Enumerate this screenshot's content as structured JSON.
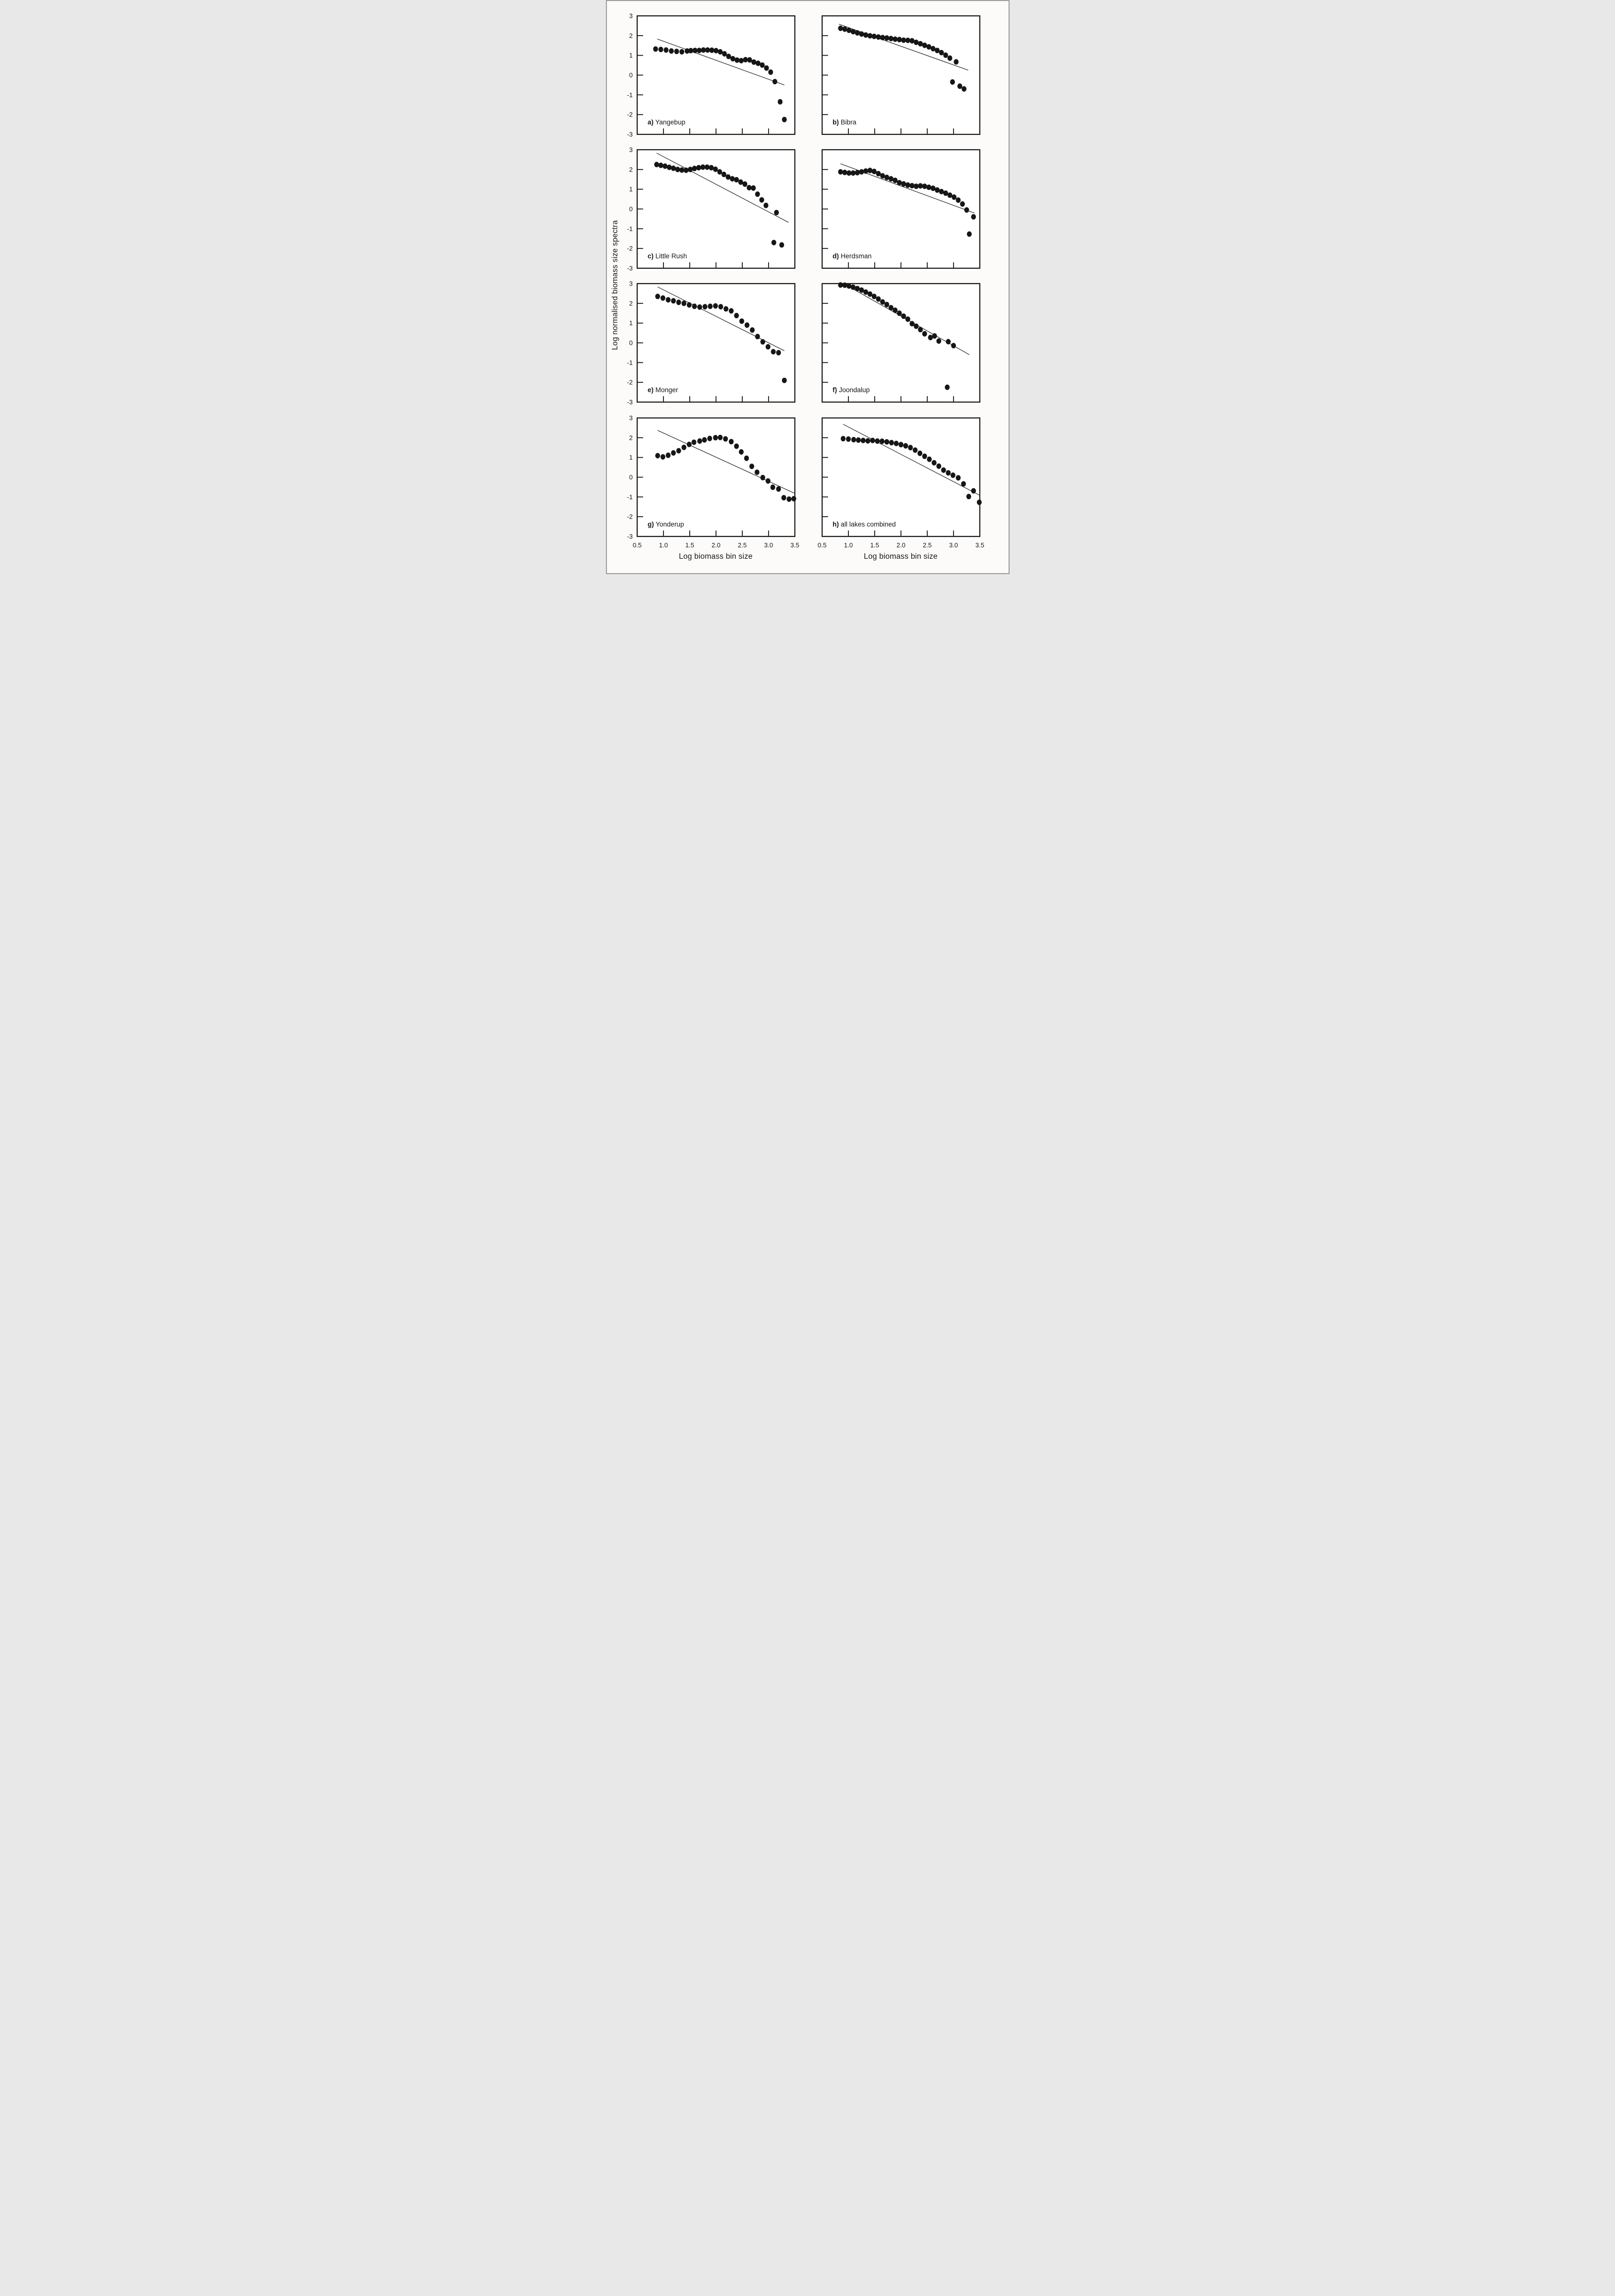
{
  "page": {
    "background": "#fcfbf9",
    "border_color": "#9b9b9b"
  },
  "figure": {
    "ylabel": "Log normalised biomass size spectra",
    "xlabel_left": "Log biomass bin size",
    "xlabel_right": "Log biomass bin size",
    "marker_color": "#161616",
    "line_color": "#262626",
    "axis_color": "#1a1a1a",
    "grid": false,
    "legend": null,
    "xlim": [
      0.5,
      3.5
    ],
    "ylim": [
      -3,
      3
    ],
    "xticks": [
      0.5,
      1.0,
      1.5,
      2.0,
      2.5,
      3.0,
      3.5
    ],
    "xtick_labels": [
      "0.5",
      "1.0",
      "1.5",
      "2.0",
      "2.5",
      "3.0",
      "3.5"
    ],
    "yticks": [
      3,
      2,
      1,
      0,
      -1,
      -2,
      -3
    ],
    "ytick_labels": [
      "3",
      "2",
      "1",
      "0",
      "-1",
      "-2",
      "-3"
    ]
  },
  "chart_data": [
    {
      "panel": "a",
      "label_prefix": "a)",
      "title": "Yangebup",
      "type": "scatter",
      "show_y_tick_labels": true,
      "show_x_tick_labels": false,
      "points": [
        [
          0.85,
          1.32
        ],
        [
          0.95,
          1.3
        ],
        [
          1.05,
          1.27
        ],
        [
          1.15,
          1.22
        ],
        [
          1.25,
          1.2
        ],
        [
          1.35,
          1.18
        ],
        [
          1.45,
          1.22
        ],
        [
          1.52,
          1.24
        ],
        [
          1.6,
          1.25
        ],
        [
          1.68,
          1.25
        ],
        [
          1.76,
          1.27
        ],
        [
          1.84,
          1.27
        ],
        [
          1.92,
          1.26
        ],
        [
          2.0,
          1.24
        ],
        [
          2.08,
          1.18
        ],
        [
          2.16,
          1.08
        ],
        [
          2.24,
          0.95
        ],
        [
          2.32,
          0.83
        ],
        [
          2.4,
          0.76
        ],
        [
          2.48,
          0.73
        ],
        [
          2.56,
          0.78
        ],
        [
          2.64,
          0.77
        ],
        [
          2.72,
          0.66
        ],
        [
          2.8,
          0.6
        ],
        [
          2.88,
          0.51
        ],
        [
          2.96,
          0.36
        ],
        [
          3.04,
          0.15
        ],
        [
          3.12,
          -0.33
        ],
        [
          3.22,
          -1.35
        ],
        [
          3.3,
          -2.25
        ]
      ],
      "trend_line": [
        [
          0.88,
          1.83
        ],
        [
          3.3,
          -0.5
        ]
      ]
    },
    {
      "panel": "b",
      "label_prefix": "b)",
      "title": "Bibra",
      "type": "scatter",
      "show_y_tick_labels": false,
      "show_x_tick_labels": false,
      "points": [
        [
          0.85,
          2.37
        ],
        [
          0.93,
          2.33
        ],
        [
          1.01,
          2.27
        ],
        [
          1.09,
          2.2
        ],
        [
          1.17,
          2.14
        ],
        [
          1.25,
          2.08
        ],
        [
          1.33,
          2.03
        ],
        [
          1.41,
          1.99
        ],
        [
          1.49,
          1.96
        ],
        [
          1.57,
          1.93
        ],
        [
          1.65,
          1.9
        ],
        [
          1.73,
          1.88
        ],
        [
          1.81,
          1.85
        ],
        [
          1.89,
          1.82
        ],
        [
          1.97,
          1.8
        ],
        [
          2.05,
          1.77
        ],
        [
          2.13,
          1.76
        ],
        [
          2.21,
          1.74
        ],
        [
          2.29,
          1.66
        ],
        [
          2.37,
          1.59
        ],
        [
          2.45,
          1.51
        ],
        [
          2.53,
          1.43
        ],
        [
          2.61,
          1.34
        ],
        [
          2.69,
          1.25
        ],
        [
          2.77,
          1.14
        ],
        [
          2.85,
          1.01
        ],
        [
          2.93,
          0.86
        ],
        [
          3.05,
          0.67
        ],
        [
          2.98,
          -0.35
        ],
        [
          3.12,
          -0.56
        ],
        [
          3.2,
          -0.7
        ]
      ],
      "trend_line": [
        [
          0.82,
          2.58
        ],
        [
          3.28,
          0.25
        ]
      ]
    },
    {
      "panel": "c",
      "label_prefix": "c)",
      "title": "Little Rush",
      "type": "scatter",
      "show_y_tick_labels": true,
      "show_x_tick_labels": false,
      "points": [
        [
          0.87,
          2.25
        ],
        [
          0.95,
          2.21
        ],
        [
          1.03,
          2.17
        ],
        [
          1.11,
          2.11
        ],
        [
          1.19,
          2.06
        ],
        [
          1.27,
          2.0
        ],
        [
          1.35,
          1.97
        ],
        [
          1.43,
          1.96
        ],
        [
          1.51,
          2.0
        ],
        [
          1.59,
          2.05
        ],
        [
          1.67,
          2.09
        ],
        [
          1.75,
          2.12
        ],
        [
          1.83,
          2.12
        ],
        [
          1.91,
          2.09
        ],
        [
          1.99,
          2.01
        ],
        [
          2.07,
          1.88
        ],
        [
          2.15,
          1.75
        ],
        [
          2.23,
          1.62
        ],
        [
          2.31,
          1.53
        ],
        [
          2.39,
          1.48
        ],
        [
          2.47,
          1.36
        ],
        [
          2.55,
          1.26
        ],
        [
          2.63,
          1.08
        ],
        [
          2.71,
          1.06
        ],
        [
          2.79,
          0.75
        ],
        [
          2.87,
          0.46
        ],
        [
          2.95,
          0.18
        ],
        [
          3.15,
          -0.18
        ],
        [
          3.1,
          -1.7
        ],
        [
          3.25,
          -1.82
        ]
      ],
      "trend_line": [
        [
          0.87,
          2.83
        ],
        [
          3.38,
          -0.68
        ]
      ]
    },
    {
      "panel": "d",
      "label_prefix": "d)",
      "title": "Herdsman",
      "type": "scatter",
      "show_y_tick_labels": false,
      "show_x_tick_labels": false,
      "points": [
        [
          0.85,
          1.88
        ],
        [
          0.93,
          1.85
        ],
        [
          1.01,
          1.82
        ],
        [
          1.09,
          1.82
        ],
        [
          1.17,
          1.84
        ],
        [
          1.25,
          1.88
        ],
        [
          1.33,
          1.92
        ],
        [
          1.41,
          1.95
        ],
        [
          1.49,
          1.9
        ],
        [
          1.57,
          1.79
        ],
        [
          1.65,
          1.68
        ],
        [
          1.73,
          1.6
        ],
        [
          1.81,
          1.53
        ],
        [
          1.89,
          1.45
        ],
        [
          1.97,
          1.33
        ],
        [
          2.05,
          1.27
        ],
        [
          2.13,
          1.21
        ],
        [
          2.21,
          1.18
        ],
        [
          2.29,
          1.15
        ],
        [
          2.37,
          1.17
        ],
        [
          2.45,
          1.15
        ],
        [
          2.53,
          1.1
        ],
        [
          2.61,
          1.05
        ],
        [
          2.69,
          0.96
        ],
        [
          2.77,
          0.88
        ],
        [
          2.85,
          0.8
        ],
        [
          2.93,
          0.7
        ],
        [
          3.01,
          0.6
        ],
        [
          3.09,
          0.45
        ],
        [
          3.17,
          0.25
        ],
        [
          3.25,
          -0.05
        ],
        [
          3.38,
          -0.4
        ],
        [
          3.3,
          -1.27
        ]
      ],
      "trend_line": [
        [
          0.85,
          2.29
        ],
        [
          3.4,
          -0.21
        ]
      ]
    },
    {
      "panel": "e",
      "label_prefix": "e)",
      "title": "Monger",
      "type": "scatter",
      "show_y_tick_labels": true,
      "show_x_tick_labels": false,
      "points": [
        [
          0.89,
          2.35
        ],
        [
          0.99,
          2.27
        ],
        [
          1.09,
          2.18
        ],
        [
          1.19,
          2.13
        ],
        [
          1.29,
          2.05
        ],
        [
          1.39,
          2.0
        ],
        [
          1.49,
          1.92
        ],
        [
          1.59,
          1.85
        ],
        [
          1.69,
          1.81
        ],
        [
          1.79,
          1.83
        ],
        [
          1.89,
          1.85
        ],
        [
          1.99,
          1.87
        ],
        [
          2.09,
          1.83
        ],
        [
          2.19,
          1.72
        ],
        [
          2.29,
          1.62
        ],
        [
          2.39,
          1.38
        ],
        [
          2.49,
          1.1
        ],
        [
          2.59,
          0.9
        ],
        [
          2.69,
          0.65
        ],
        [
          2.79,
          0.32
        ],
        [
          2.89,
          0.05
        ],
        [
          2.99,
          -0.2
        ],
        [
          3.09,
          -0.45
        ],
        [
          3.19,
          -0.5
        ],
        [
          3.3,
          -1.9
        ]
      ],
      "trend_line": [
        [
          0.89,
          2.83
        ],
        [
          3.3,
          -0.4
        ]
      ]
    },
    {
      "panel": "f",
      "label_prefix": "f)",
      "title": "Joondalup",
      "type": "scatter",
      "show_y_tick_labels": false,
      "show_x_tick_labels": false,
      "points": [
        [
          0.85,
          2.93
        ],
        [
          0.93,
          2.92
        ],
        [
          1.01,
          2.88
        ],
        [
          1.09,
          2.82
        ],
        [
          1.17,
          2.75
        ],
        [
          1.25,
          2.67
        ],
        [
          1.33,
          2.57
        ],
        [
          1.41,
          2.47
        ],
        [
          1.49,
          2.35
        ],
        [
          1.57,
          2.22
        ],
        [
          1.65,
          2.07
        ],
        [
          1.73,
          1.94
        ],
        [
          1.81,
          1.78
        ],
        [
          1.89,
          1.65
        ],
        [
          1.97,
          1.5
        ],
        [
          2.05,
          1.35
        ],
        [
          2.13,
          1.2
        ],
        [
          2.21,
          0.97
        ],
        [
          2.29,
          0.84
        ],
        [
          2.37,
          0.67
        ],
        [
          2.45,
          0.46
        ],
        [
          2.56,
          0.27
        ],
        [
          2.64,
          0.35
        ],
        [
          2.72,
          0.09
        ],
        [
          2.9,
          0.06
        ],
        [
          3.0,
          -0.14
        ],
        [
          2.88,
          -2.25
        ]
      ],
      "trend_line": [
        [
          1.0,
          2.86
        ],
        [
          3.3,
          -0.6
        ]
      ]
    },
    {
      "panel": "g",
      "label_prefix": "g)",
      "title": "Yonderup",
      "type": "scatter",
      "show_y_tick_labels": true,
      "show_x_tick_labels": true,
      "points": [
        [
          0.89,
          1.09
        ],
        [
          0.99,
          1.03
        ],
        [
          1.09,
          1.11
        ],
        [
          1.19,
          1.23
        ],
        [
          1.29,
          1.34
        ],
        [
          1.39,
          1.51
        ],
        [
          1.49,
          1.66
        ],
        [
          1.58,
          1.77
        ],
        [
          1.69,
          1.83
        ],
        [
          1.78,
          1.89
        ],
        [
          1.88,
          1.96
        ],
        [
          1.99,
          2.0
        ],
        [
          2.08,
          2.01
        ],
        [
          2.18,
          1.94
        ],
        [
          2.29,
          1.8
        ],
        [
          2.39,
          1.57
        ],
        [
          2.48,
          1.28
        ],
        [
          2.58,
          0.96
        ],
        [
          2.68,
          0.55
        ],
        [
          2.78,
          0.25
        ],
        [
          2.89,
          -0.02
        ],
        [
          2.99,
          -0.19
        ],
        [
          3.08,
          -0.51
        ],
        [
          3.19,
          -0.6
        ],
        [
          3.29,
          -1.04
        ],
        [
          3.39,
          -1.11
        ],
        [
          3.48,
          -1.09
        ]
      ],
      "trend_line": [
        [
          0.89,
          2.37
        ],
        [
          3.5,
          -0.82
        ]
      ]
    },
    {
      "panel": "h",
      "label_prefix": "h)",
      "title": "all lakes combined",
      "type": "scatter",
      "show_y_tick_labels": false,
      "show_x_tick_labels": true,
      "points": [
        [
          0.9,
          1.95
        ],
        [
          1.0,
          1.93
        ],
        [
          1.1,
          1.9
        ],
        [
          1.19,
          1.88
        ],
        [
          1.28,
          1.86
        ],
        [
          1.37,
          1.84
        ],
        [
          1.46,
          1.86
        ],
        [
          1.55,
          1.83
        ],
        [
          1.64,
          1.82
        ],
        [
          1.73,
          1.79
        ],
        [
          1.82,
          1.75
        ],
        [
          1.91,
          1.71
        ],
        [
          2.0,
          1.65
        ],
        [
          2.09,
          1.59
        ],
        [
          2.18,
          1.5
        ],
        [
          2.27,
          1.37
        ],
        [
          2.36,
          1.21
        ],
        [
          2.45,
          1.06
        ],
        [
          2.54,
          0.91
        ],
        [
          2.63,
          0.73
        ],
        [
          2.72,
          0.56
        ],
        [
          2.81,
          0.36
        ],
        [
          2.9,
          0.22
        ],
        [
          2.99,
          0.1
        ],
        [
          3.09,
          -0.03
        ],
        [
          3.19,
          -0.34
        ],
        [
          3.29,
          -0.98
        ],
        [
          3.38,
          -0.69
        ],
        [
          3.49,
          -1.27
        ]
      ],
      "trend_line": [
        [
          0.9,
          2.68
        ],
        [
          3.5,
          -0.92
        ]
      ]
    }
  ]
}
